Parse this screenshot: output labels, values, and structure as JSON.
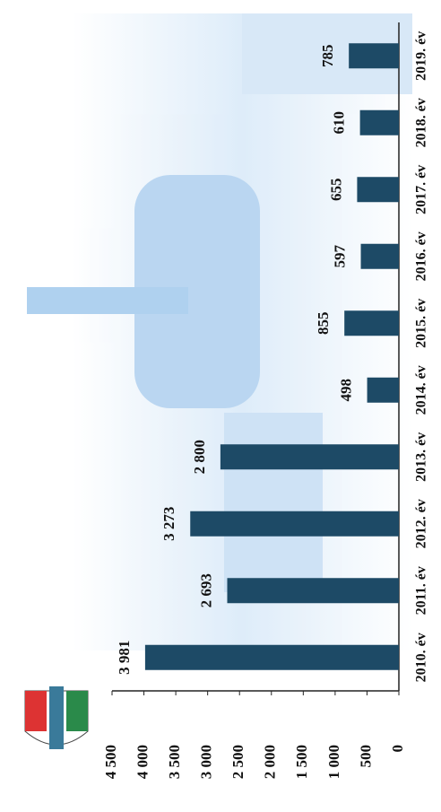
{
  "chart_data": {
    "type": "bar",
    "categories": [
      "2010. év",
      "2011. év",
      "2012. év",
      "2013. év",
      "2014. év",
      "2015. év",
      "2016. év",
      "2017. év",
      "2018. év",
      "2019. év"
    ],
    "values": [
      3981,
      2693,
      3273,
      2800,
      498,
      855,
      597,
      655,
      610,
      785
    ],
    "value_labels": [
      "3 981",
      "2 693",
      "3 273",
      "2 800",
      "498",
      "855",
      "597",
      "655",
      "610",
      "785"
    ],
    "color": "#1d4a66",
    "ylim": [
      0,
      4500
    ],
    "yticks": [
      0,
      500,
      {
        "value": 1000,
        "label": "1 000"
      },
      {
        "value": 1500,
        "label": "1 500"
      },
      {
        "value": 2000,
        "label": "2 000"
      },
      {
        "value": 2500,
        "label": "2 500"
      },
      {
        "value": 3000,
        "label": "3 000"
      },
      {
        "value": 3500,
        "label": "3 500"
      },
      {
        "value": 4000,
        "label": "4 000"
      },
      {
        "value": 4500,
        "label": "4 500"
      }
    ]
  }
}
